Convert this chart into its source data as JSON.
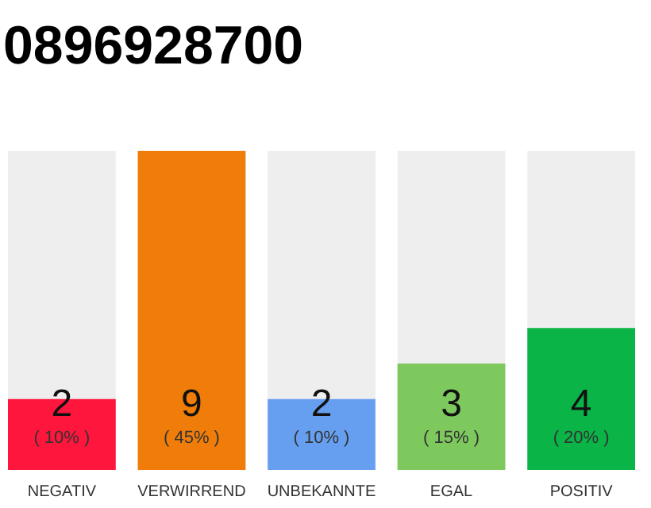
{
  "chart_data": {
    "type": "bar",
    "title": "0896928700",
    "categories": [
      "NEGATIV",
      "VERWIRREND",
      "UNBEKANNTE",
      "EGAL",
      "POSITIV"
    ],
    "values": [
      2,
      9,
      2,
      3,
      4
    ],
    "colors": [
      "#ff163c",
      "#f07d0a",
      "#679ff0",
      "#7dc95e",
      "#0bb446"
    ],
    "ylim": [
      0,
      9
    ],
    "tick_labels": "x",
    "data_labels": true,
    "annotations": [
      "( 10% )",
      "( 45% )",
      "( 10% )",
      "( 15% )",
      "( 20% )"
    ]
  }
}
